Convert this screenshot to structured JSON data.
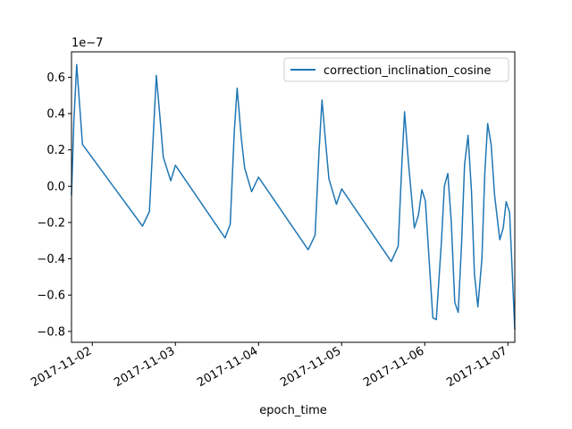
{
  "chart_data": {
    "type": "line",
    "xlabel": "epoch_time",
    "ylabel": "",
    "offset_label": "1e−7",
    "xlim": [
      "2017-11-01 18:00",
      "2017-11-07 02:00"
    ],
    "ylim": [
      -0.86,
      0.74
    ],
    "x_ticks": [
      {
        "value": "2017-11-02",
        "label": "2017-11-02"
      },
      {
        "value": "2017-11-03",
        "label": "2017-11-03"
      },
      {
        "value": "2017-11-04",
        "label": "2017-11-04"
      },
      {
        "value": "2017-11-05",
        "label": "2017-11-05"
      },
      {
        "value": "2017-11-06",
        "label": "2017-11-06"
      },
      {
        "value": "2017-11-07",
        "label": "2017-11-07"
      }
    ],
    "y_ticks": [
      {
        "value": 0.6,
        "label": "0.6"
      },
      {
        "value": 0.4,
        "label": "0.4"
      },
      {
        "value": 0.2,
        "label": "0.2"
      },
      {
        "value": 0.0,
        "label": "0.0"
      },
      {
        "value": -0.2,
        "label": "−0.2"
      },
      {
        "value": -0.4,
        "label": "−0.4"
      },
      {
        "value": -0.6,
        "label": "−0.6"
      },
      {
        "value": -0.8,
        "label": "−0.8"
      }
    ],
    "legend_position": "upper right",
    "grid": false,
    "series": [
      {
        "name": "correction_inclination_cosine",
        "color": "#1f77b4",
        "points": [
          {
            "x": "2017-11-01 18:00",
            "y": -0.05
          },
          {
            "x": "2017-11-01 18:40",
            "y": 0.35
          },
          {
            "x": "2017-11-01 19:30",
            "y": 0.67
          },
          {
            "x": "2017-11-01 20:20",
            "y": 0.45
          },
          {
            "x": "2017-11-01 21:10",
            "y": 0.23
          },
          {
            "x": "2017-11-02 14:30",
            "y": -0.22
          },
          {
            "x": "2017-11-02 16:30",
            "y": -0.14
          },
          {
            "x": "2017-11-02 17:40",
            "y": 0.3
          },
          {
            "x": "2017-11-02 18:30",
            "y": 0.61
          },
          {
            "x": "2017-11-02 19:30",
            "y": 0.39
          },
          {
            "x": "2017-11-02 20:30",
            "y": 0.16
          },
          {
            "x": "2017-11-02 22:40",
            "y": 0.03
          },
          {
            "x": "2017-11-03 00:00",
            "y": 0.115
          },
          {
            "x": "2017-11-03 14:20",
            "y": -0.285
          },
          {
            "x": "2017-11-03 15:50",
            "y": -0.21
          },
          {
            "x": "2017-11-03 17:00",
            "y": 0.3
          },
          {
            "x": "2017-11-03 17:50",
            "y": 0.54
          },
          {
            "x": "2017-11-03 19:00",
            "y": 0.27
          },
          {
            "x": "2017-11-03 20:00",
            "y": 0.1
          },
          {
            "x": "2017-11-03 22:00",
            "y": -0.03
          },
          {
            "x": "2017-11-04 00:00",
            "y": 0.05
          },
          {
            "x": "2017-11-04 14:20",
            "y": -0.35
          },
          {
            "x": "2017-11-04 16:20",
            "y": -0.27
          },
          {
            "x": "2017-11-04 17:30",
            "y": 0.2
          },
          {
            "x": "2017-11-04 18:20",
            "y": 0.475
          },
          {
            "x": "2017-11-04 19:20",
            "y": 0.25
          },
          {
            "x": "2017-11-04 20:20",
            "y": 0.04
          },
          {
            "x": "2017-11-04 22:30",
            "y": -0.1
          },
          {
            "x": "2017-11-05 00:00",
            "y": -0.015
          },
          {
            "x": "2017-11-05 14:20",
            "y": -0.415
          },
          {
            "x": "2017-11-05 16:20",
            "y": -0.33
          },
          {
            "x": "2017-11-05 17:20",
            "y": 0.1
          },
          {
            "x": "2017-11-05 18:10",
            "y": 0.41
          },
          {
            "x": "2017-11-05 19:20",
            "y": 0.12
          },
          {
            "x": "2017-11-05 21:00",
            "y": -0.23
          },
          {
            "x": "2017-11-05 22:10",
            "y": -0.16
          },
          {
            "x": "2017-11-05 23:10",
            "y": -0.02
          },
          {
            "x": "2017-11-06 00:10",
            "y": -0.08
          },
          {
            "x": "2017-11-06 02:20",
            "y": -0.725
          },
          {
            "x": "2017-11-06 03:20",
            "y": -0.735
          },
          {
            "x": "2017-11-06 04:50",
            "y": -0.3
          },
          {
            "x": "2017-11-06 05:40",
            "y": 0.0
          },
          {
            "x": "2017-11-06 06:40",
            "y": 0.07
          },
          {
            "x": "2017-11-06 07:40",
            "y": -0.2
          },
          {
            "x": "2017-11-06 08:40",
            "y": -0.64
          },
          {
            "x": "2017-11-06 09:40",
            "y": -0.695
          },
          {
            "x": "2017-11-06 10:40",
            "y": -0.3
          },
          {
            "x": "2017-11-06 11:30",
            "y": 0.12
          },
          {
            "x": "2017-11-06 12:30",
            "y": 0.28
          },
          {
            "x": "2017-11-06 13:30",
            "y": -0.03
          },
          {
            "x": "2017-11-06 14:20",
            "y": -0.48
          },
          {
            "x": "2017-11-06 15:20",
            "y": -0.665
          },
          {
            "x": "2017-11-06 16:30",
            "y": -0.4
          },
          {
            "x": "2017-11-06 17:20",
            "y": 0.07
          },
          {
            "x": "2017-11-06 18:10",
            "y": 0.345
          },
          {
            "x": "2017-11-06 19:10",
            "y": 0.23
          },
          {
            "x": "2017-11-06 20:10",
            "y": -0.05
          },
          {
            "x": "2017-11-06 21:40",
            "y": -0.295
          },
          {
            "x": "2017-11-06 22:40",
            "y": -0.23
          },
          {
            "x": "2017-11-06 23:30",
            "y": -0.085
          },
          {
            "x": "2017-11-07 00:30",
            "y": -0.145
          },
          {
            "x": "2017-11-07 02:00",
            "y": -0.79
          }
        ]
      }
    ]
  }
}
